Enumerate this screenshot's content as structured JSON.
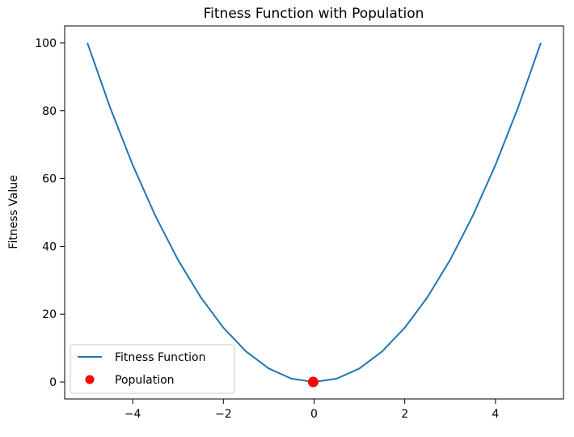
{
  "chart_data": {
    "type": "line",
    "title": "Fitness Function with Population",
    "xlabel": "",
    "ylabel": "Fitness Value",
    "xlim": [
      -5.5,
      5.5
    ],
    "ylim": [
      -5,
      105
    ],
    "x_ticks": [
      -4,
      -2,
      0,
      2,
      4
    ],
    "x_tick_labels": [
      "−4",
      "−2",
      "0",
      "2",
      "4"
    ],
    "y_ticks": [
      0,
      20,
      40,
      60,
      80,
      100
    ],
    "y_tick_labels": [
      "0",
      "20",
      "40",
      "60",
      "80",
      "100"
    ],
    "grid": false,
    "legend_position": "lower-left",
    "series": [
      {
        "name": "Fitness Function",
        "type": "line",
        "color": "#1f77b4",
        "x": [
          -5,
          -4.5,
          -4,
          -3.5,
          -3,
          -2.5,
          -2,
          -1.5,
          -1,
          -0.5,
          0,
          0.5,
          1,
          1.5,
          2,
          2.5,
          3,
          3.5,
          4,
          4.5,
          5
        ],
        "y": [
          100,
          81,
          64,
          49,
          36,
          25,
          16,
          9,
          4,
          1,
          0,
          1,
          4,
          9,
          16,
          25,
          36,
          49,
          64,
          81,
          100
        ]
      },
      {
        "name": "Population",
        "type": "scatter",
        "color": "#ff0000",
        "x": [
          -0.02
        ],
        "y": [
          0
        ]
      }
    ]
  }
}
